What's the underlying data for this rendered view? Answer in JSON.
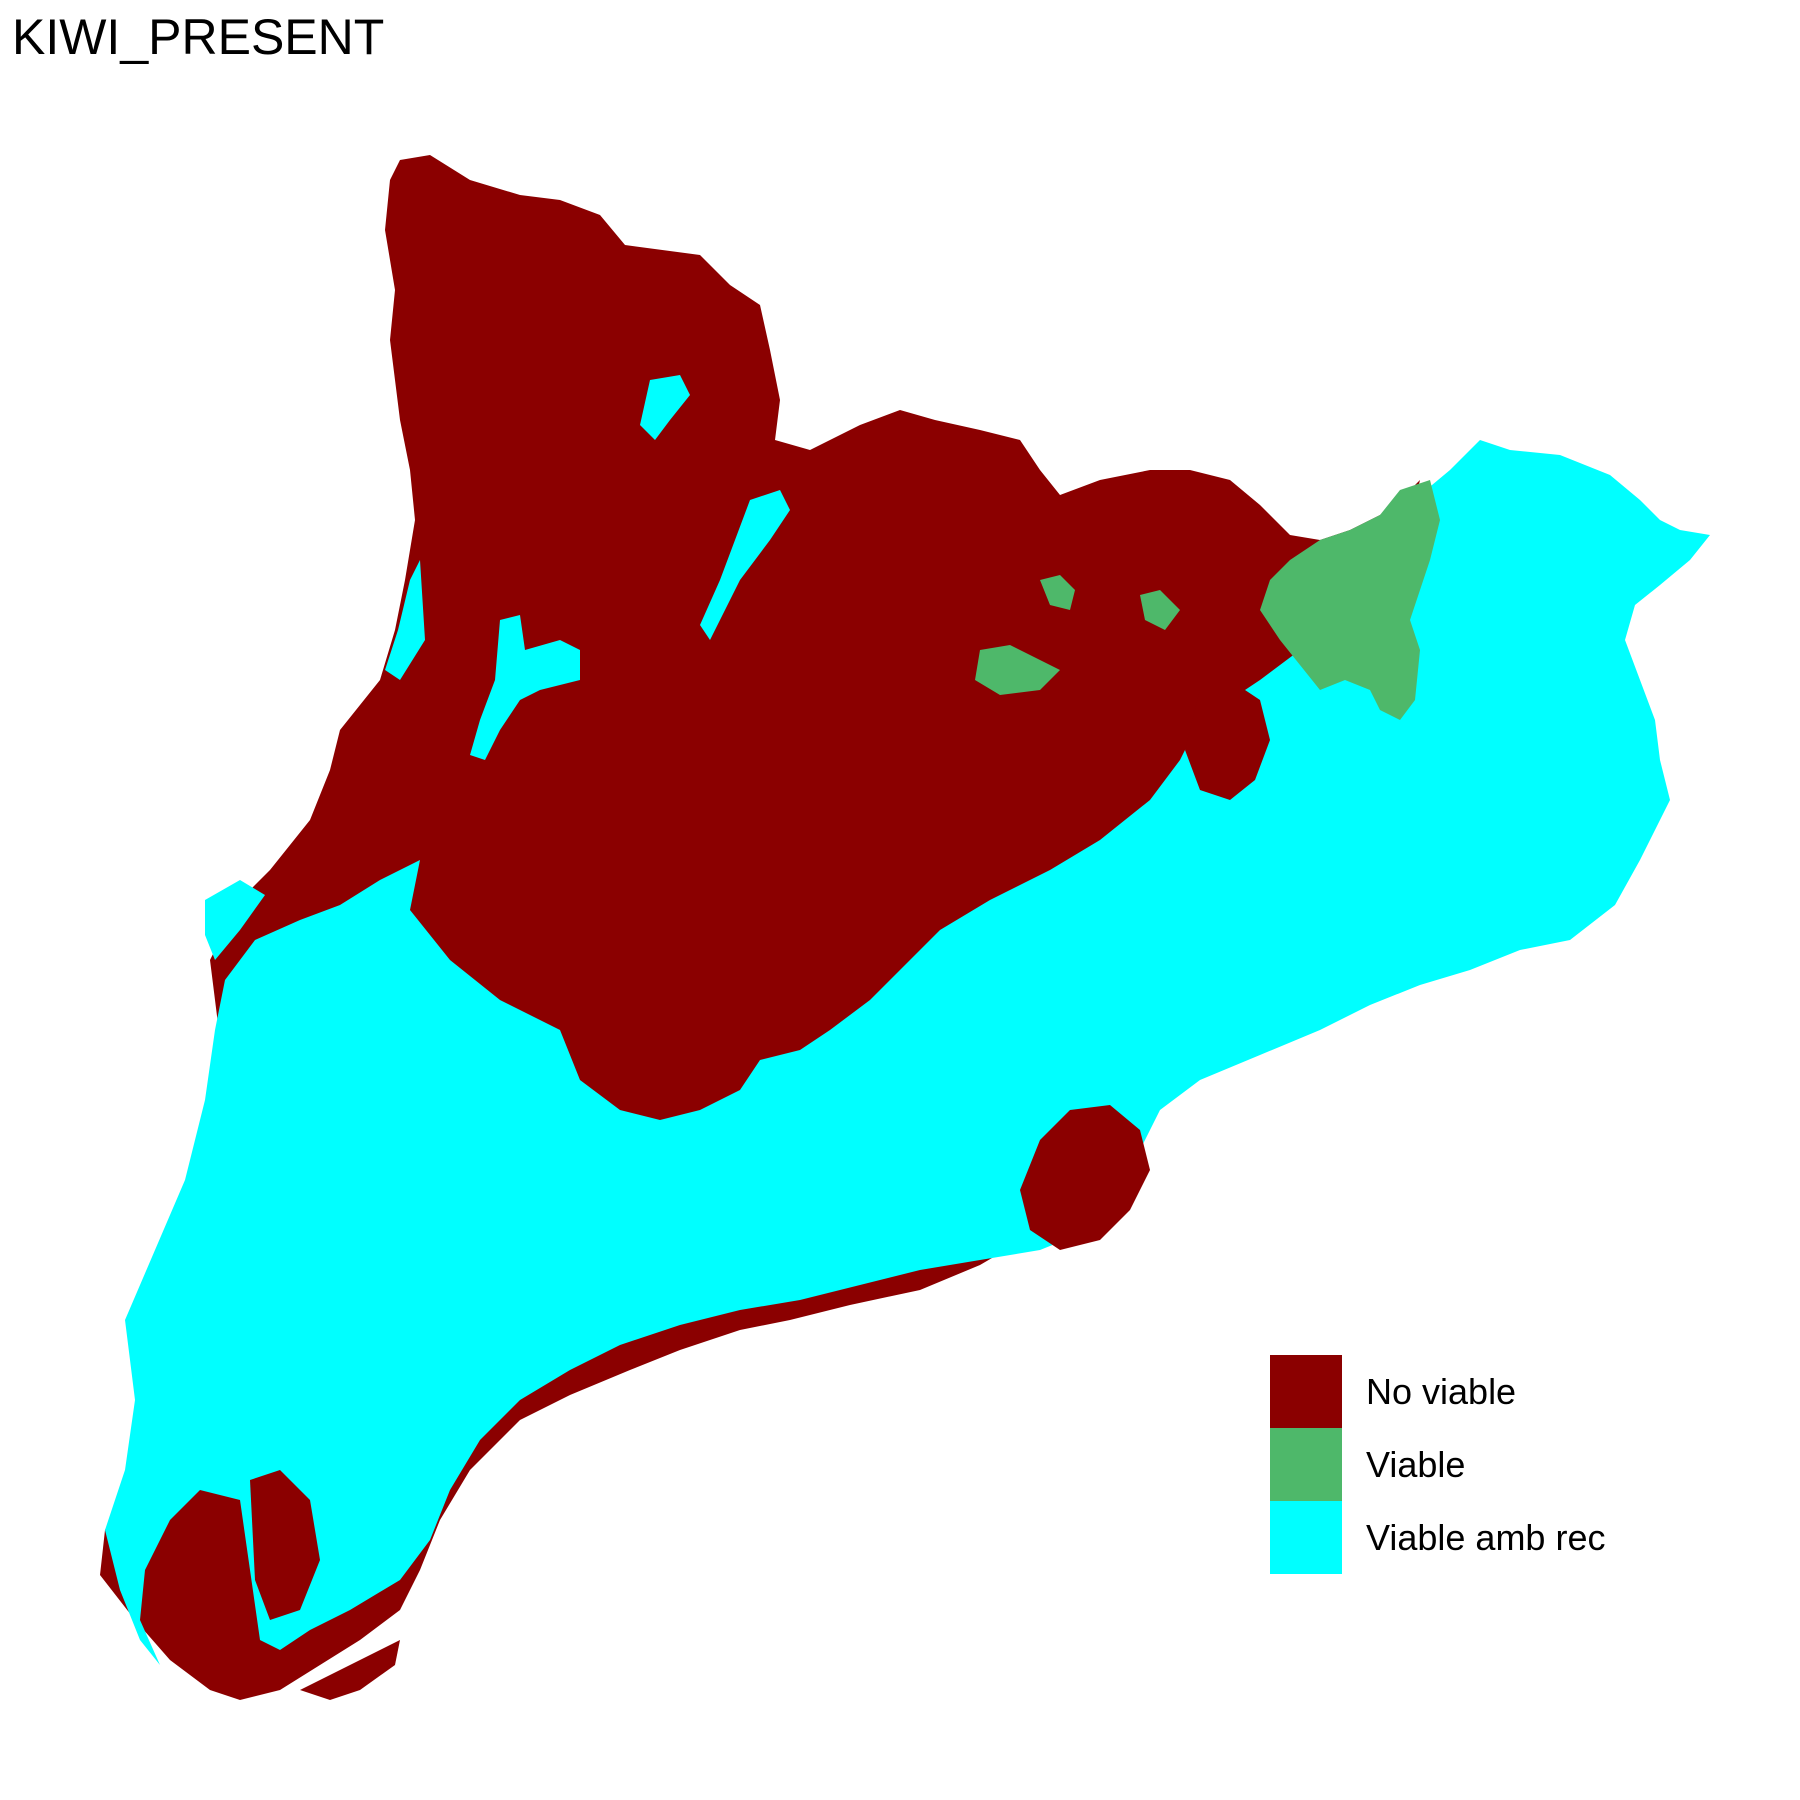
{
  "title": "KIWI_PRESENT",
  "colors": {
    "no_viable": "#8b0000",
    "viable": "#4eb86a",
    "viable_amb_rec": "#00ffff"
  },
  "legend": {
    "items": [
      {
        "label": "No viable",
        "color": "#8b0000"
      },
      {
        "label": "Viable",
        "color": "#4eb86a"
      },
      {
        "label": "Viable amb rec",
        "color": "#00ffff"
      }
    ]
  }
}
